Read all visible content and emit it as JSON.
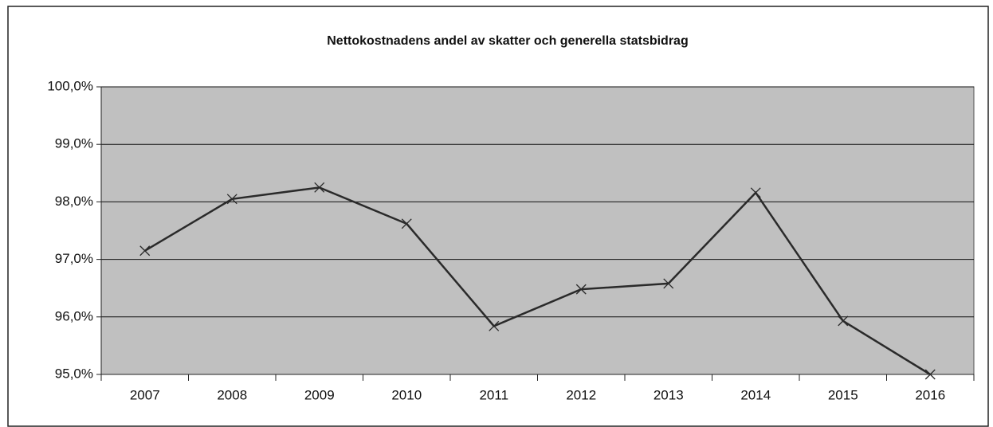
{
  "chart_data": {
    "type": "line",
    "title": "Nettokostnadens andel av skatter och generella statsbidrag",
    "categories": [
      "2007",
      "2008",
      "2009",
      "2010",
      "2011",
      "2012",
      "2013",
      "2014",
      "2015",
      "2016"
    ],
    "series": [
      {
        "color": "#2a2a2a",
        "values": [
          97.15,
          98.05,
          98.25,
          97.62,
          95.84,
          96.48,
          96.58,
          98.16,
          95.93,
          95.0
        ]
      }
    ],
    "ylim": [
      95,
      100
    ],
    "yticks": [
      {
        "value": 95,
        "label": "95,0%"
      },
      {
        "value": 96,
        "label": "96,0%"
      },
      {
        "value": 97,
        "label": "97,0%"
      },
      {
        "value": 98,
        "label": "98,0%"
      },
      {
        "value": 99,
        "label": "99,0%"
      },
      {
        "value": 100,
        "label": "100,0%"
      }
    ],
    "grid": true
  }
}
